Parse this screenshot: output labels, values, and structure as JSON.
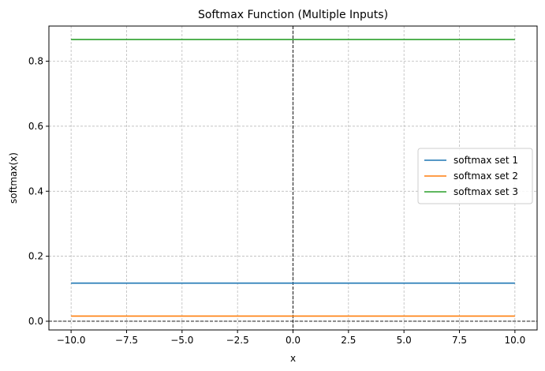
{
  "chart_data": {
    "type": "line",
    "title": "Softmax Function (Multiple Inputs)",
    "xlabel": "x",
    "ylabel": "softmax(x)",
    "xlim": [
      -11,
      11
    ],
    "ylim": [
      -0.0268,
      0.9082
    ],
    "xticks": [
      -10,
      -7.5,
      -5,
      -2.5,
      0,
      2.5,
      5,
      7.5,
      10
    ],
    "xtick_labels": [
      "−10.0",
      "−7.5",
      "−5.0",
      "−2.5",
      "0.0",
      "2.5",
      "5.0",
      "7.5",
      "10.0"
    ],
    "yticks": [
      0,
      0.2,
      0.4,
      0.6,
      0.8
    ],
    "ytick_labels": [
      "0.0",
      "0.2",
      "0.4",
      "0.6",
      "0.8"
    ],
    "grid": true,
    "reference_lines": {
      "x": 0,
      "y": 0,
      "style": "dashed",
      "color": "#000000"
    },
    "legend_position": "center-right",
    "series": [
      {
        "name": "softmax set 1",
        "color": "#1f77b4",
        "x": [
          -10,
          10
        ],
        "y": [
          0.1173,
          0.1173
        ]
      },
      {
        "name": "softmax set 2",
        "color": "#ff7f0e",
        "x": [
          -10,
          10
        ],
        "y": [
          0.0159,
          0.0159
        ]
      },
      {
        "name": "softmax set 3",
        "color": "#2ca02c",
        "x": [
          -10,
          10
        ],
        "y": [
          0.8668,
          0.8668
        ]
      }
    ]
  }
}
